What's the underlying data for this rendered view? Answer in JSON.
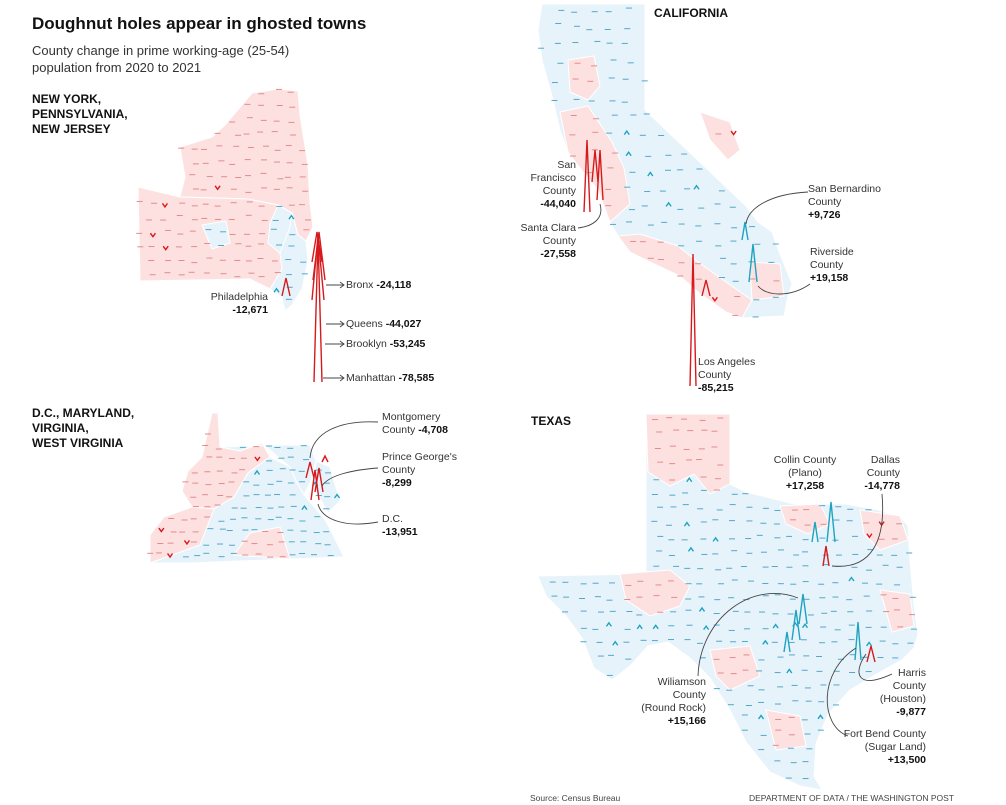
{
  "title": "Doughnut holes appear in ghosted towns",
  "subtitle": "County change in prime working-age (25-54) population from 2020 to 2021",
  "colors": {
    "decline": "#d7191c",
    "growth": "#1fa3c0",
    "decline_fill": "#fde1e1",
    "growth_fill": "#e6f3fb"
  },
  "regions": {
    "ny": {
      "name_lines": [
        "NEW YORK,",
        "PENNSYLVANIA,",
        "NEW JERSEY"
      ],
      "labels": {
        "philadelphia": {
          "name": "Philadelphia",
          "value": "-12,671"
        },
        "bronx": {
          "name": "Bronx",
          "value": "-24,118"
        },
        "queens": {
          "name": "Queens",
          "value": "-44,027"
        },
        "brooklyn": {
          "name": "Brooklyn",
          "value": "-53,245"
        },
        "manhattan": {
          "name": "Manhattan",
          "value": "-78,585"
        }
      }
    },
    "dc": {
      "name_lines": [
        "D.C., MARYLAND,",
        "VIRGINIA,",
        "WEST VIRGINIA"
      ],
      "labels": {
        "montgomery": {
          "name": "Montgomery County",
          "value": "-4,708"
        },
        "prince_georges": {
          "name": "Prince George's County",
          "value": "-8,299"
        },
        "dc": {
          "name": "D.C.",
          "value": "-13,951"
        }
      }
    },
    "ca": {
      "name": "CALIFORNIA",
      "labels": {
        "san_francisco": {
          "name": "San Francisco County",
          "value": "-44,040"
        },
        "santa_clara": {
          "name": "Santa Clara County",
          "value": "-27,558"
        },
        "san_bernardino": {
          "name": "San Bernardino County",
          "value": "+9,726"
        },
        "riverside": {
          "name": "Riverside County",
          "value": "+19,158"
        },
        "los_angeles": {
          "name": "Los Angeles County",
          "value": "-85,215"
        }
      }
    },
    "tx": {
      "name": "TEXAS",
      "labels": {
        "collin": {
          "name": "Collin County (Plano)",
          "value": "+17,258"
        },
        "dallas": {
          "name": "Dallas County",
          "value": "-14,778"
        },
        "williamson": {
          "name": "Wiliamson County (Round Rock)",
          "value": "+15,166"
        },
        "harris": {
          "name": "Harris County (Houston)",
          "value": "-9,877"
        },
        "fort_bend": {
          "name": "Fort Bend County (Sugar Land)",
          "value": "+13,500"
        }
      }
    }
  },
  "footer": {
    "source": "Source: Census Bureau",
    "credit": "DEPARTMENT OF DATA / THE WASHINGTON POST"
  }
}
